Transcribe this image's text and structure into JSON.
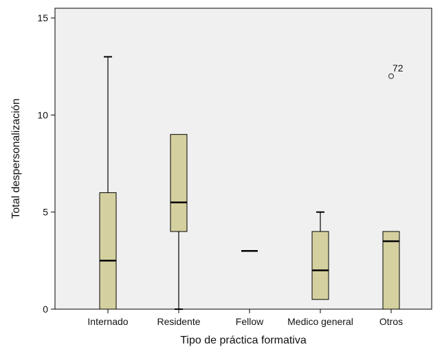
{
  "chart_data": {
    "type": "boxplot",
    "xlabel": "Tipo de práctica formativa",
    "ylabel": "Total despersonalización",
    "ylim": [
      0,
      15.5
    ],
    "yticks": [
      0,
      5,
      10,
      15
    ],
    "categories": [
      "Internado",
      "Residente",
      "Fellow",
      "Medico general",
      "Otros"
    ],
    "boxes": [
      {
        "category": "Internado",
        "min": 0,
        "q1": 0,
        "median": 2.5,
        "q3": 6,
        "max": 13
      },
      {
        "category": "Residente",
        "min": 0,
        "q1": 4,
        "median": 5.5,
        "q3": 9,
        "max": 9
      },
      {
        "category": "Fellow",
        "min": 3,
        "q1": 3,
        "median": 3,
        "q3": 3,
        "max": 3
      },
      {
        "category": "Medico general",
        "min": 0.5,
        "q1": 0.5,
        "median": 2,
        "q3": 4,
        "max": 5
      },
      {
        "category": "Otros",
        "min": 0,
        "q1": 0,
        "median": 3.5,
        "q3": 4,
        "max": 4
      }
    ],
    "outliers": [
      {
        "category": "Otros",
        "value": 12,
        "label": "72"
      }
    ],
    "colors": {
      "box_fill": "#d5d09f",
      "plot_bg": "#f0f0f0",
      "line": "#000000",
      "outlier": "#444444"
    }
  }
}
